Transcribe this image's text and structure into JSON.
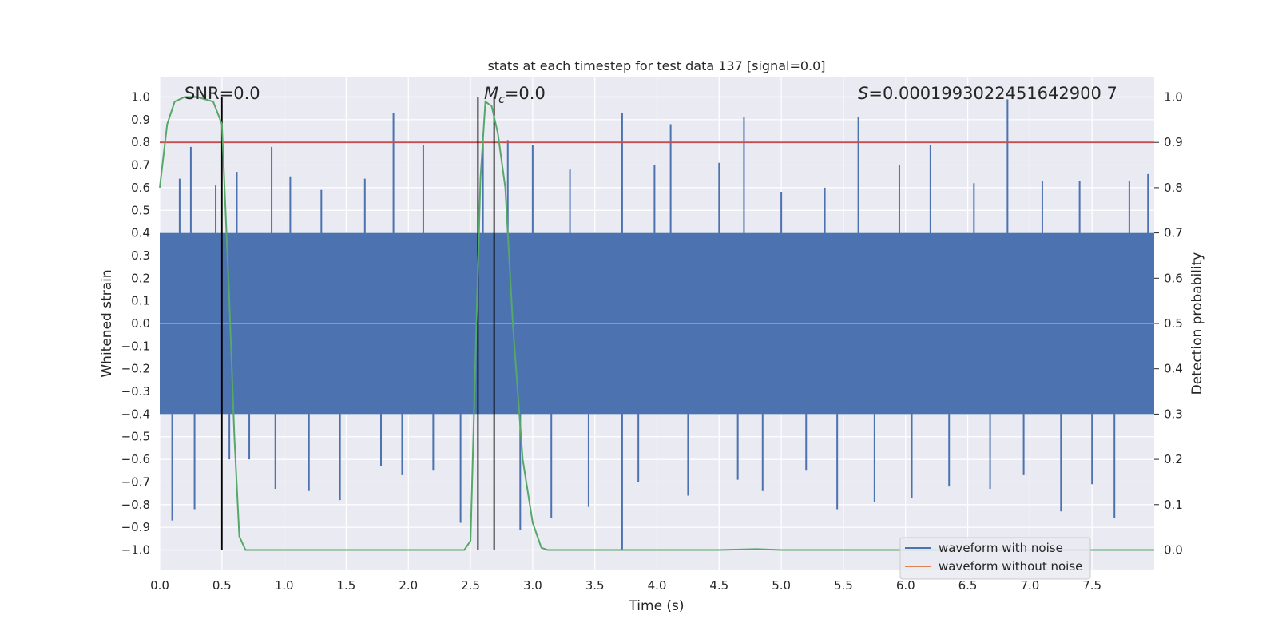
{
  "chart_data": {
    "type": "line",
    "title": "stats at each timestep for test data 137 [signal=0.0]",
    "xlabel": "Time (s)",
    "ylabel": "Whitened strain",
    "y2label": "Detection probability",
    "xlim": [
      0.0,
      8.0
    ],
    "ylim": [
      -1.09,
      1.09
    ],
    "y2lim": [
      -0.045,
      1.045
    ],
    "x_ticks": [
      "0.0",
      "0.5",
      "1.0",
      "1.5",
      "2.0",
      "2.5",
      "3.0",
      "3.5",
      "4.0",
      "4.5",
      "5.0",
      "5.5",
      "6.0",
      "6.5",
      "7.0",
      "7.5"
    ],
    "y_ticks": [
      "1.0",
      "0.9",
      "0.8",
      "0.7",
      "0.6",
      "0.5",
      "0.4",
      "0.3",
      "0.2",
      "0.1",
      "0.0",
      "−0.1",
      "−0.2",
      "−0.3",
      "−0.4",
      "−0.5",
      "−0.6",
      "−0.7",
      "−0.8",
      "−0.9",
      "−1.0"
    ],
    "y2_ticks": [
      "1.0",
      "0.9",
      "0.8",
      "0.7",
      "0.6",
      "0.5",
      "0.4",
      "0.3",
      "0.2",
      "0.1",
      "0.0"
    ],
    "annotations": {
      "snr": "SNR=0.0",
      "mc_symbol": "M",
      "mc_sub": "c",
      "mc_value": "=0.0",
      "s_symbol": "S",
      "s_value": "=0.0001993022451642900 7"
    },
    "threshold": {
      "axis": "y2",
      "value": 0.9,
      "color": "#c44e52"
    },
    "vertical_markers": [
      0.5,
      2.56,
      2.69
    ],
    "series": [
      {
        "name": "waveform with noise",
        "color": "#4c72b0",
        "axis": "y",
        "envelope_band": [
          -0.4,
          0.4
        ],
        "spikes": [
          [
            0.1,
            -0.87
          ],
          [
            0.16,
            0.64
          ],
          [
            0.25,
            0.78
          ],
          [
            0.28,
            -0.82
          ],
          [
            0.45,
            0.61
          ],
          [
            0.56,
            -0.6
          ],
          [
            0.62,
            0.67
          ],
          [
            0.72,
            -0.6
          ],
          [
            0.9,
            0.78
          ],
          [
            0.93,
            -0.73
          ],
          [
            1.05,
            0.65
          ],
          [
            1.2,
            -0.74
          ],
          [
            1.3,
            0.59
          ],
          [
            1.45,
            -0.78
          ],
          [
            1.65,
            0.64
          ],
          [
            1.78,
            -0.63
          ],
          [
            1.88,
            0.93
          ],
          [
            1.95,
            -0.67
          ],
          [
            2.12,
            0.79
          ],
          [
            2.2,
            -0.65
          ],
          [
            2.42,
            -0.88
          ],
          [
            2.6,
            0.81
          ],
          [
            2.8,
            0.81
          ],
          [
            2.9,
            -0.91
          ],
          [
            3.0,
            0.79
          ],
          [
            3.15,
            -0.86
          ],
          [
            3.3,
            0.68
          ],
          [
            3.45,
            -0.81
          ],
          [
            3.72,
            0.93
          ],
          [
            3.72,
            -1.0
          ],
          [
            3.85,
            -0.7
          ],
          [
            3.98,
            0.7
          ],
          [
            4.11,
            0.88
          ],
          [
            4.25,
            -0.76
          ],
          [
            4.5,
            0.71
          ],
          [
            4.65,
            -0.69
          ],
          [
            4.7,
            0.91
          ],
          [
            4.85,
            -0.74
          ],
          [
            5.0,
            0.58
          ],
          [
            5.2,
            -0.65
          ],
          [
            5.35,
            0.6
          ],
          [
            5.45,
            -0.82
          ],
          [
            5.62,
            0.91
          ],
          [
            5.75,
            -0.79
          ],
          [
            5.95,
            0.7
          ],
          [
            6.05,
            -0.77
          ],
          [
            6.2,
            0.79
          ],
          [
            6.35,
            -0.72
          ],
          [
            6.55,
            0.62
          ],
          [
            6.68,
            -0.73
          ],
          [
            6.82,
            0.99
          ],
          [
            6.95,
            -0.67
          ],
          [
            7.1,
            0.63
          ],
          [
            7.25,
            -0.83
          ],
          [
            7.4,
            0.63
          ],
          [
            7.5,
            -0.71
          ],
          [
            7.68,
            -0.86
          ],
          [
            7.8,
            0.63
          ],
          [
            7.95,
            0.66
          ]
        ]
      },
      {
        "name": "waveform without noise",
        "color": "#dd8452",
        "axis": "y",
        "constant": 0.0
      }
    ],
    "probability": {
      "name": "detection probability",
      "color": "#55a868",
      "axis": "y2",
      "x": [
        0.0,
        0.06,
        0.12,
        0.2,
        0.3,
        0.43,
        0.5,
        0.56,
        0.6,
        0.64,
        0.69,
        0.75,
        1.0,
        1.5,
        2.0,
        2.3,
        2.45,
        2.5,
        2.55,
        2.58,
        2.62,
        2.67,
        2.72,
        2.78,
        2.84,
        2.92,
        3.0,
        3.07,
        3.12,
        3.5,
        4.0,
        4.5,
        4.8,
        5.0,
        6.0,
        7.0,
        8.0
      ],
      "values": [
        0.8,
        0.94,
        0.99,
        1.0,
        1.0,
        0.99,
        0.94,
        0.55,
        0.25,
        0.03,
        0.0,
        0.0,
        0.0,
        0.0,
        0.0,
        0.0,
        0.0,
        0.02,
        0.52,
        0.82,
        0.99,
        0.98,
        0.92,
        0.8,
        0.5,
        0.2,
        0.06,
        0.005,
        0.0,
        0.0,
        0.0,
        0.0,
        0.002,
        0.0,
        0.0,
        0.0,
        0.0
      ]
    },
    "legend": {
      "placement": "lower-right",
      "entries": [
        "waveform with noise",
        "waveform without noise"
      ]
    }
  }
}
